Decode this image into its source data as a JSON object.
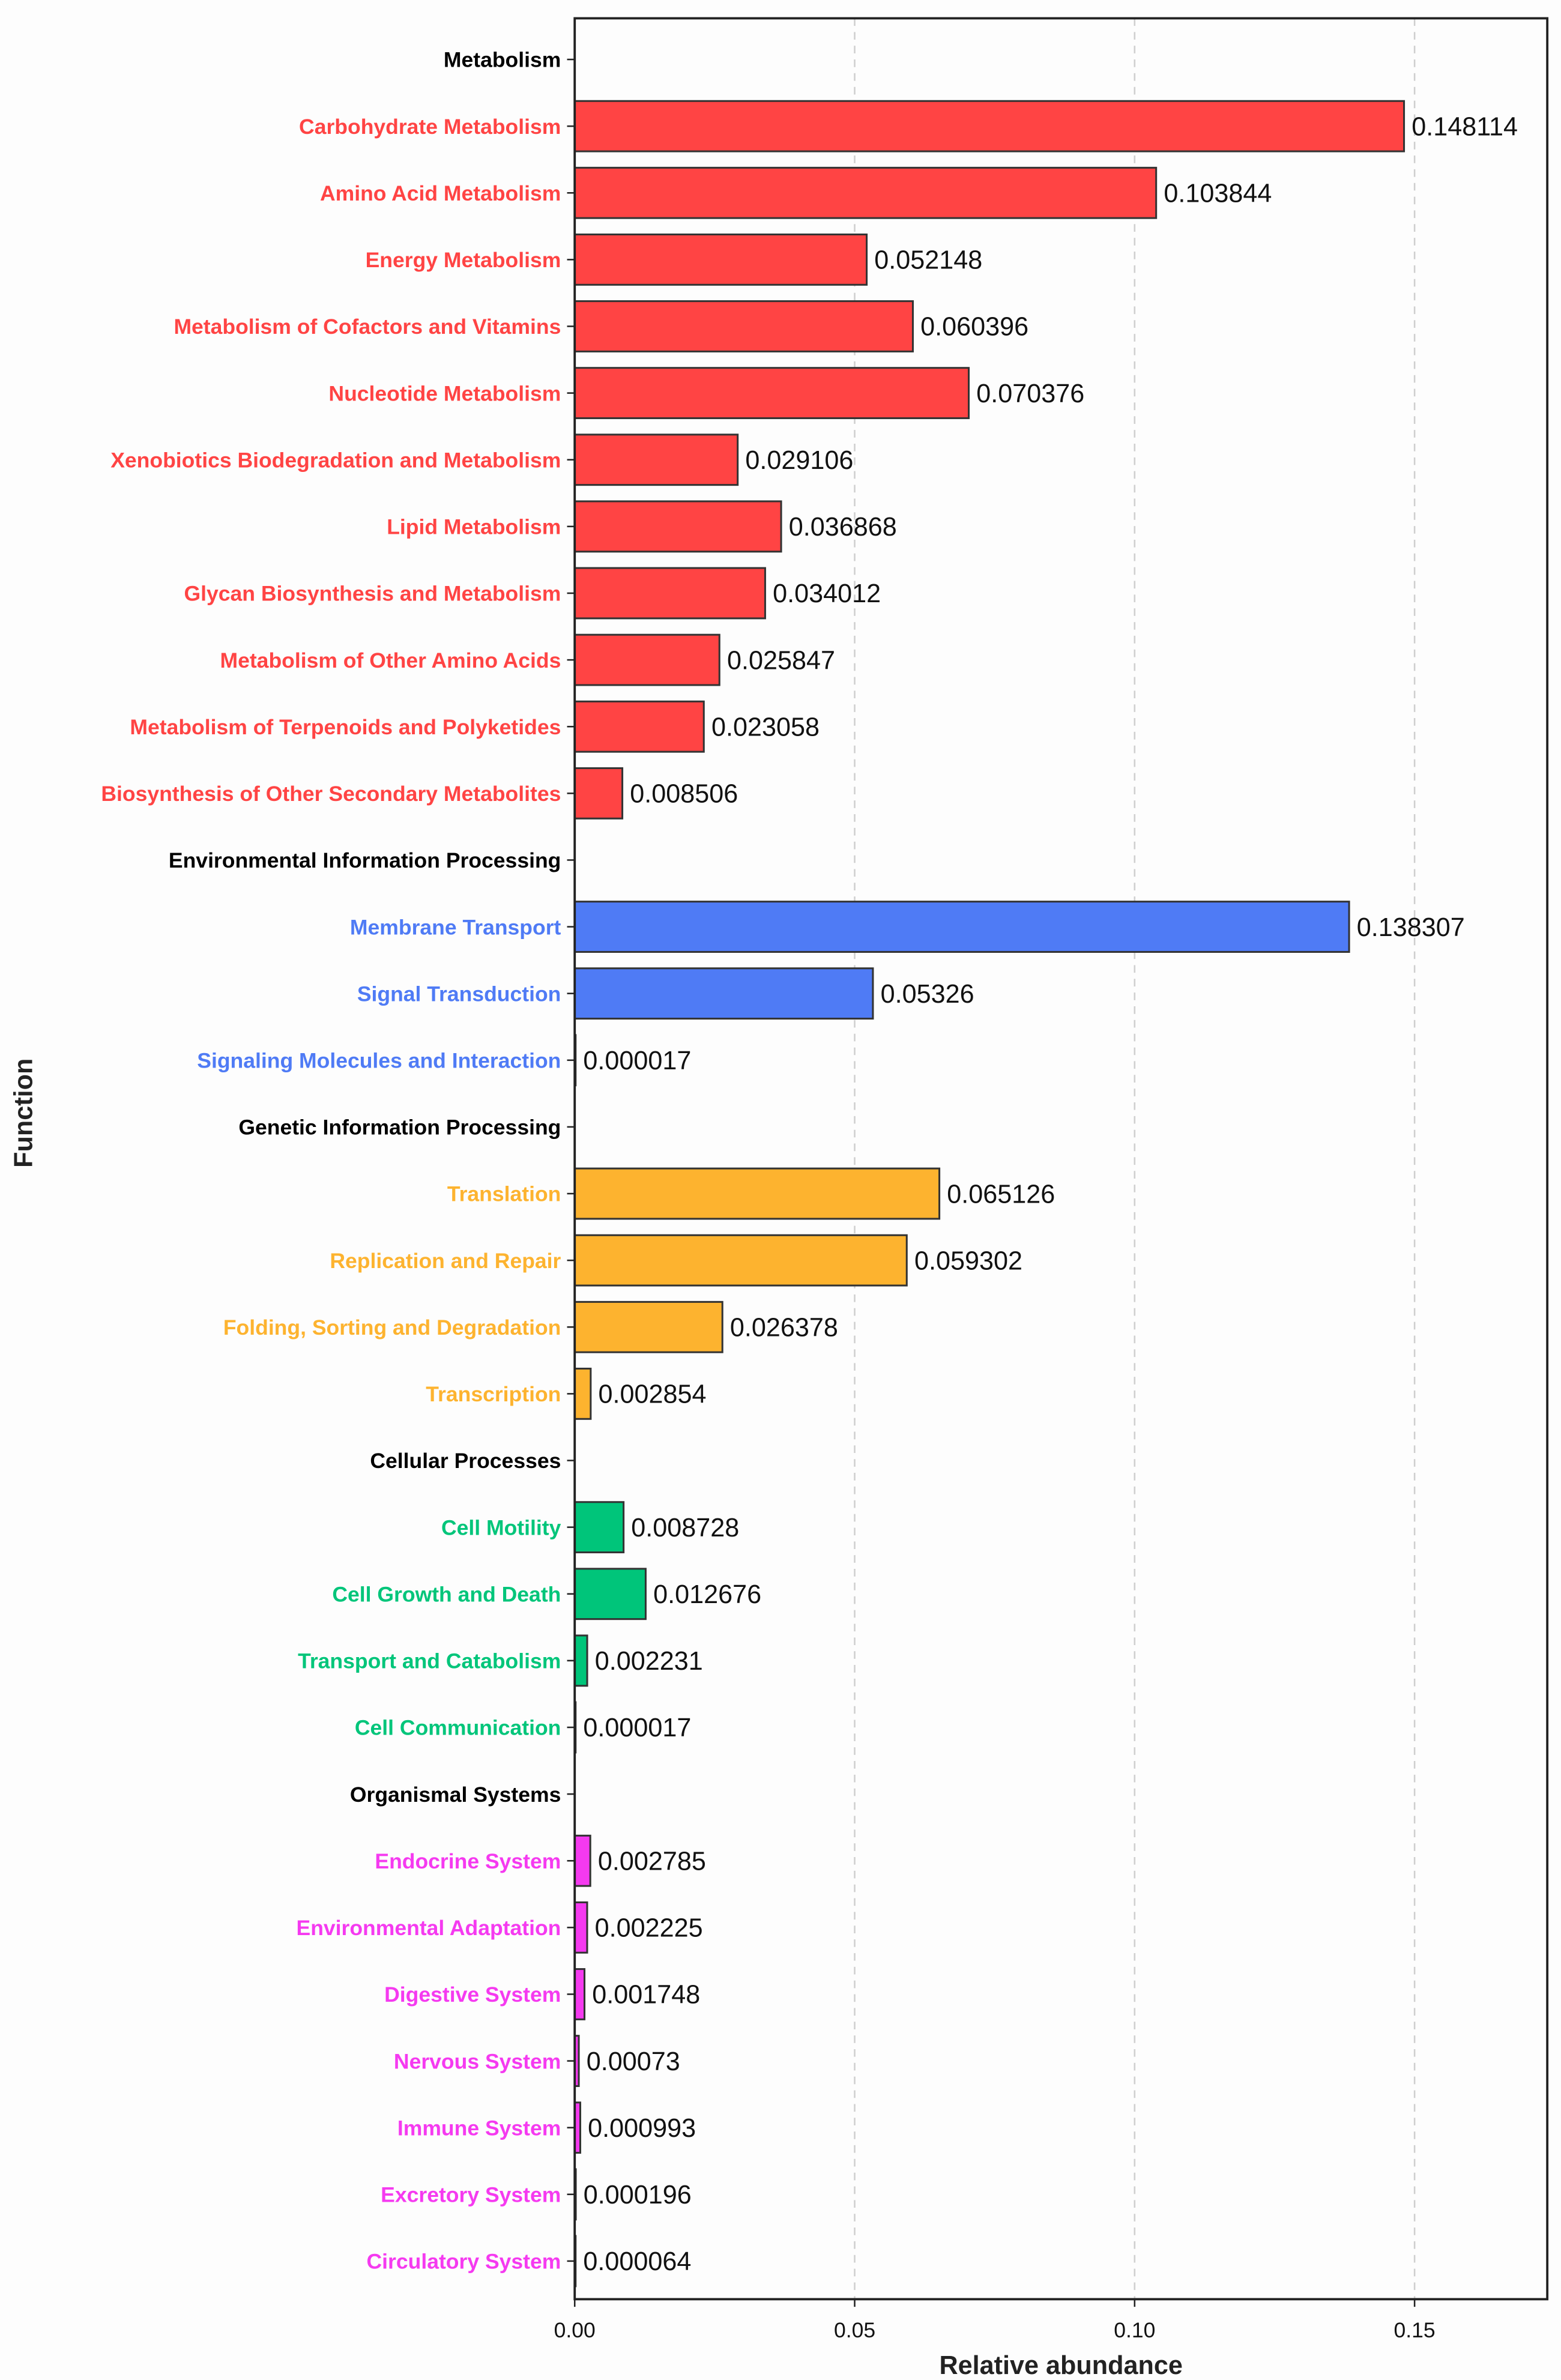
{
  "chart_data": {
    "type": "bar",
    "orientation": "horizontal",
    "xlabel": "Relative abundance",
    "ylabel": "Function",
    "xlim": [
      0,
      0.1737
    ],
    "xticks": [
      "0.00",
      "0.05",
      "0.10",
      "0.15"
    ],
    "xtick_values": [
      0,
      0.05,
      0.1,
      0.15
    ],
    "grid": "vertical dashed",
    "group_colors": {
      "Metabolism": "#FF4444",
      "Environmental Information Processing": "#4F7BF5",
      "Genetic Information Processing": "#FDB32F",
      "Cellular Processes": "#00C57A",
      "Organismal Systems": "#F53AF0"
    },
    "rows": [
      {
        "label": "Metabolism",
        "header": true
      },
      {
        "label": "Carbohydrate Metabolism",
        "group": "Metabolism",
        "value": 0.148114,
        "text": "0.148114"
      },
      {
        "label": "Amino Acid Metabolism",
        "group": "Metabolism",
        "value": 0.103844,
        "text": "0.103844"
      },
      {
        "label": "Energy Metabolism",
        "group": "Metabolism",
        "value": 0.052148,
        "text": "0.052148"
      },
      {
        "label": "Metabolism of Cofactors and Vitamins",
        "group": "Metabolism",
        "value": 0.060396,
        "text": "0.060396"
      },
      {
        "label": "Nucleotide Metabolism",
        "group": "Metabolism",
        "value": 0.070376,
        "text": "0.070376"
      },
      {
        "label": "Xenobiotics Biodegradation and Metabolism",
        "group": "Metabolism",
        "value": 0.029106,
        "text": "0.029106"
      },
      {
        "label": "Lipid Metabolism",
        "group": "Metabolism",
        "value": 0.036868,
        "text": "0.036868"
      },
      {
        "label": "Glycan Biosynthesis and Metabolism",
        "group": "Metabolism",
        "value": 0.034012,
        "text": "0.034012"
      },
      {
        "label": "Metabolism of Other Amino Acids",
        "group": "Metabolism",
        "value": 0.025847,
        "text": "0.025847"
      },
      {
        "label": "Metabolism of Terpenoids and Polyketides",
        "group": "Metabolism",
        "value": 0.023058,
        "text": "0.023058"
      },
      {
        "label": "Biosynthesis of Other Secondary Metabolites",
        "group": "Metabolism",
        "value": 0.008506,
        "text": "0.008506"
      },
      {
        "label": "Environmental Information Processing",
        "header": true
      },
      {
        "label": "Membrane Transport",
        "group": "Environmental Information Processing",
        "value": 0.138307,
        "text": "0.138307"
      },
      {
        "label": "Signal Transduction",
        "group": "Environmental Information Processing",
        "value": 0.05326,
        "text": "0.05326"
      },
      {
        "label": "Signaling Molecules and Interaction",
        "group": "Environmental Information Processing",
        "value": 1.7e-05,
        "text": "0.000017"
      },
      {
        "label": "Genetic Information Processing",
        "header": true
      },
      {
        "label": "Translation",
        "group": "Genetic Information Processing",
        "value": 0.065126,
        "text": "0.065126"
      },
      {
        "label": "Replication and Repair",
        "group": "Genetic Information Processing",
        "value": 0.059302,
        "text": "0.059302"
      },
      {
        "label": "Folding, Sorting and Degradation",
        "group": "Genetic Information Processing",
        "value": 0.026378,
        "text": "0.026378"
      },
      {
        "label": "Transcription",
        "group": "Genetic Information Processing",
        "value": 0.002854,
        "text": "0.002854"
      },
      {
        "label": "Cellular Processes",
        "header": true
      },
      {
        "label": "Cell Motility",
        "group": "Cellular Processes",
        "value": 0.008728,
        "text": "0.008728"
      },
      {
        "label": "Cell Growth and Death",
        "group": "Cellular Processes",
        "value": 0.012676,
        "text": "0.012676"
      },
      {
        "label": "Transport and Catabolism",
        "group": "Cellular Processes",
        "value": 0.002231,
        "text": "0.002231"
      },
      {
        "label": "Cell Communication",
        "group": "Cellular Processes",
        "value": 1.7e-05,
        "text": "0.000017"
      },
      {
        "label": "Organismal Systems",
        "header": true
      },
      {
        "label": "Endocrine System",
        "group": "Organismal Systems",
        "value": 0.002785,
        "text": "0.002785"
      },
      {
        "label": "Environmental Adaptation",
        "group": "Organismal Systems",
        "value": 0.002225,
        "text": "0.002225"
      },
      {
        "label": "Digestive System",
        "group": "Organismal Systems",
        "value": 0.001748,
        "text": "0.001748"
      },
      {
        "label": "Nervous System",
        "group": "Organismal Systems",
        "value": 0.00073,
        "text": "0.00073"
      },
      {
        "label": "Immune System",
        "group": "Organismal Systems",
        "value": 0.000993,
        "text": "0.000993"
      },
      {
        "label": "Excretory System",
        "group": "Organismal Systems",
        "value": 0.000196,
        "text": "0.000196"
      },
      {
        "label": "Circulatory System",
        "group": "Organismal Systems",
        "value": 6.4e-05,
        "text": "0.000064"
      }
    ]
  }
}
